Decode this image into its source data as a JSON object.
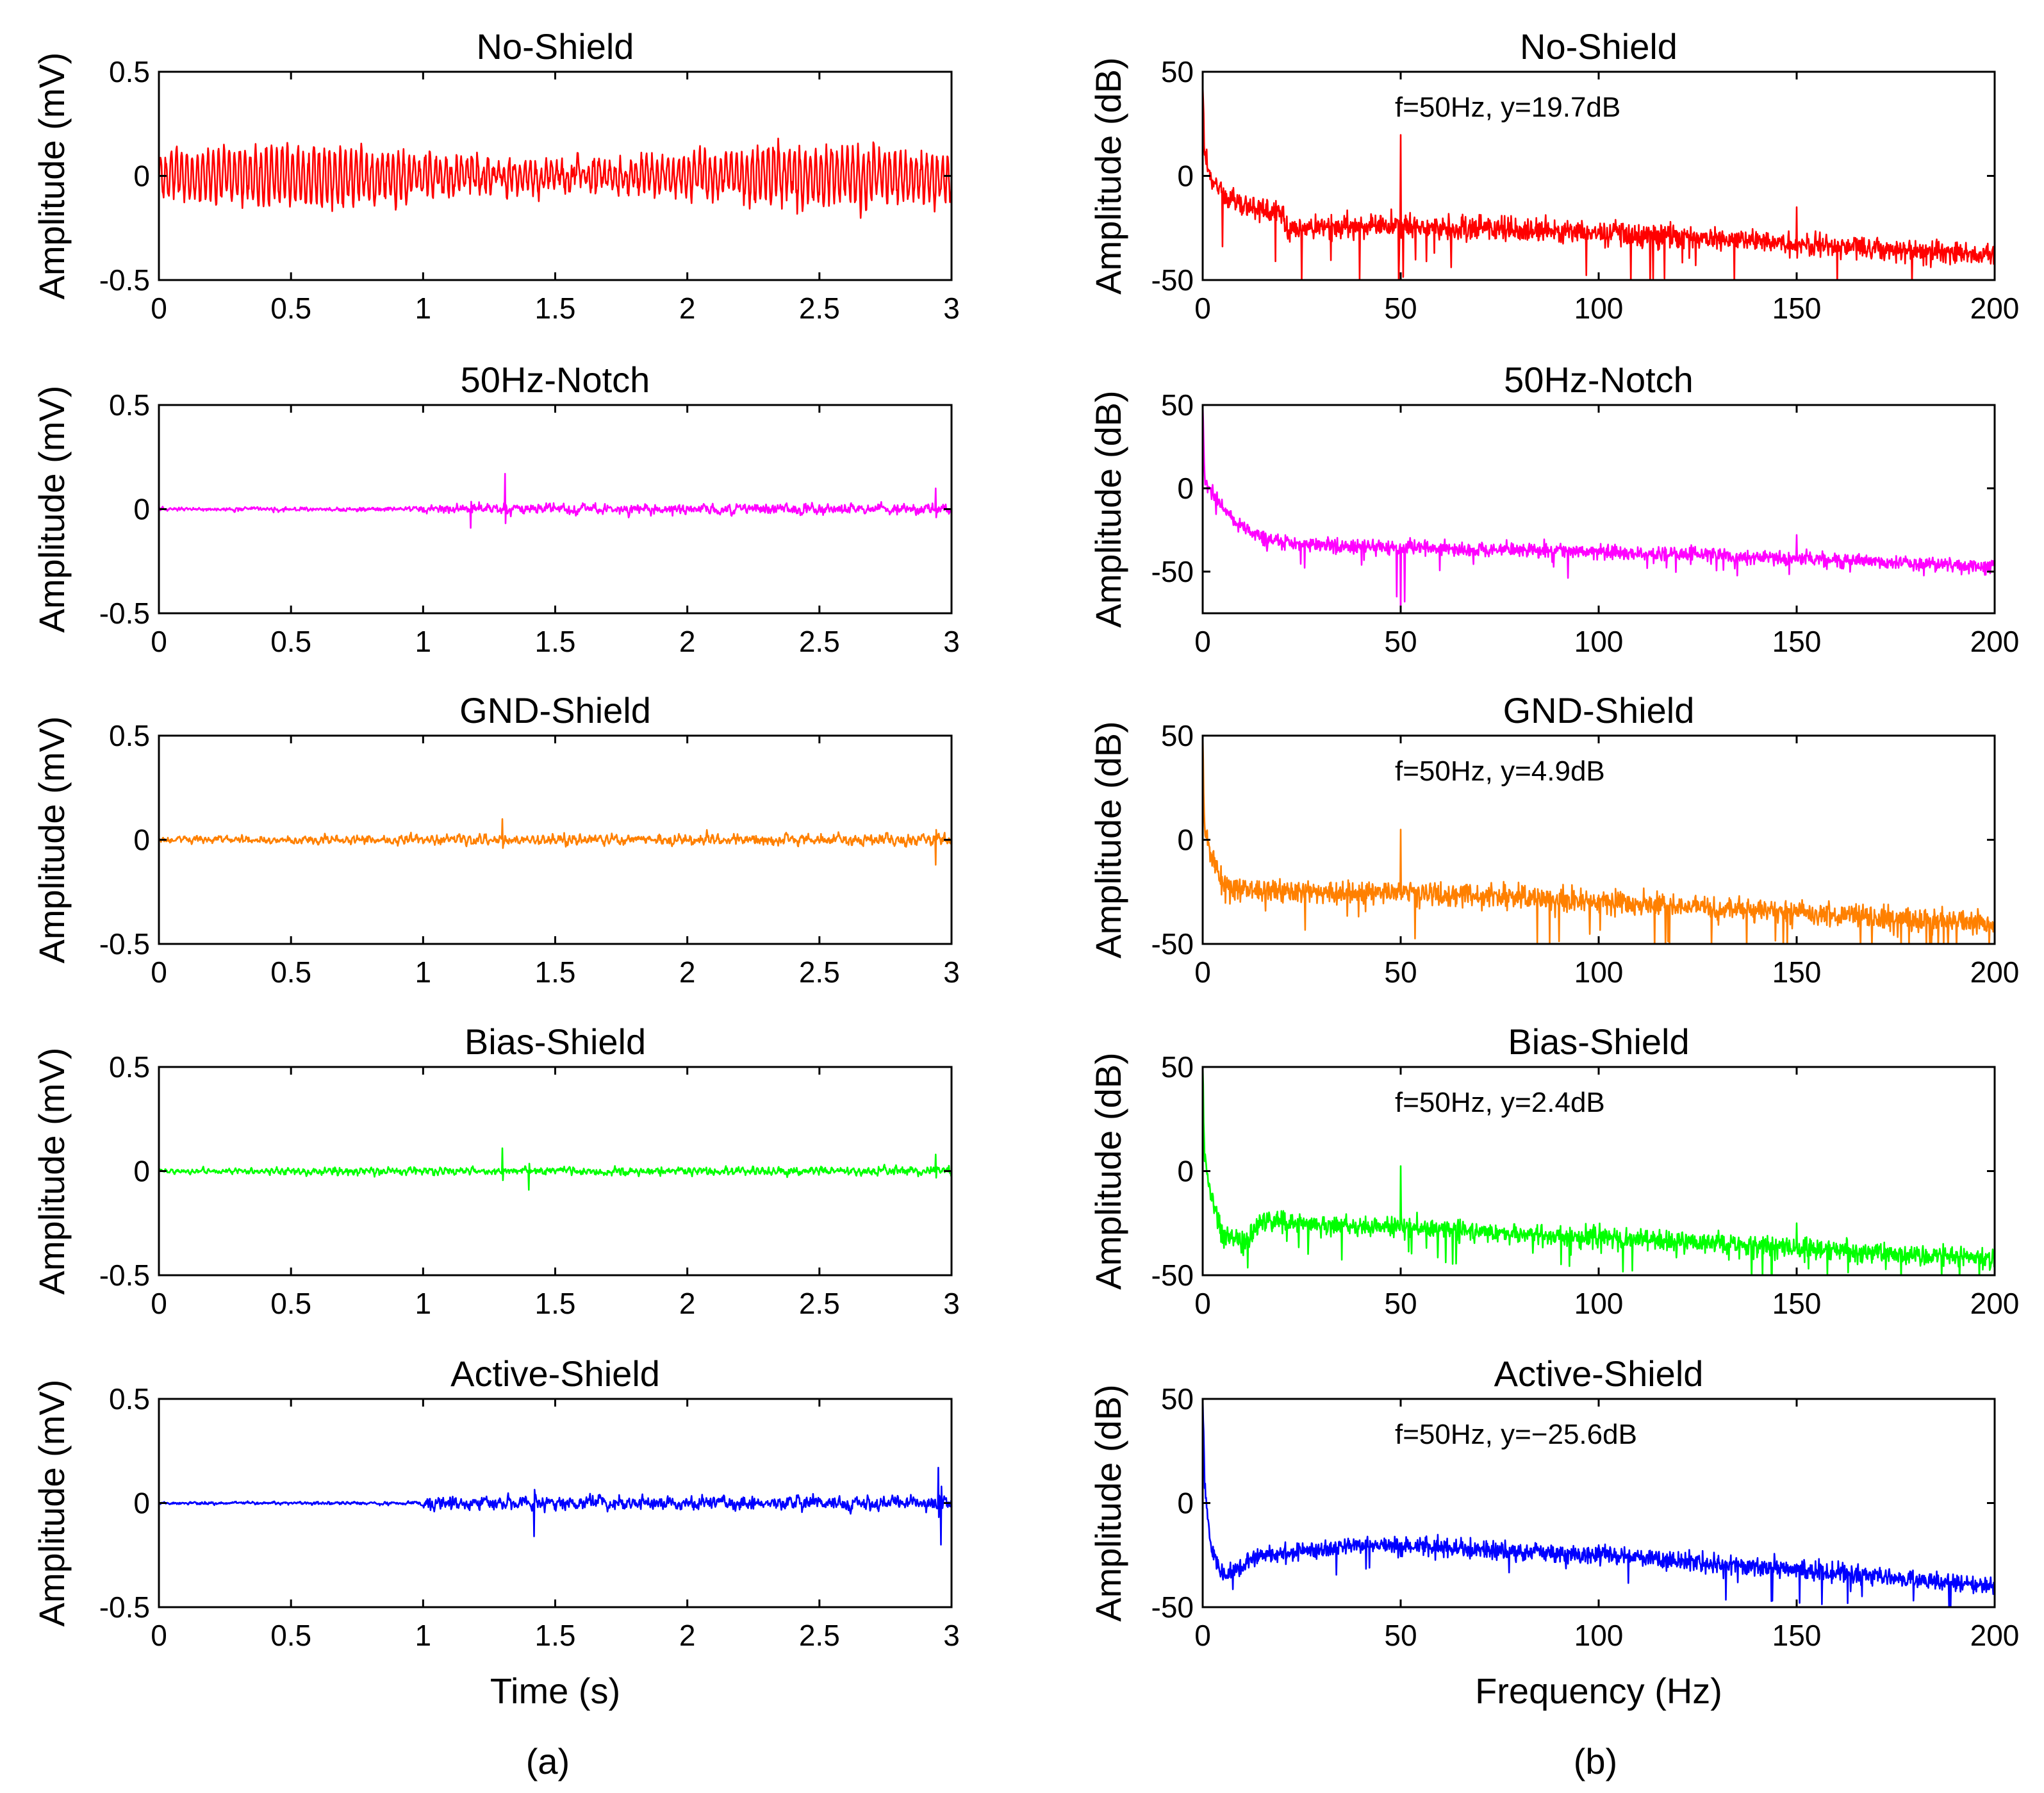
{
  "chart_data": [
    {
      "type": "line",
      "id": "a1",
      "title": "No-Shield",
      "color": "#ff0000",
      "xlabel": "",
      "ylabel": "Amplitude (mV)",
      "xlim": [
        0,
        3
      ],
      "ylim": [
        -0.5,
        0.5
      ],
      "xticks": [
        0,
        0.5,
        1,
        1.5,
        2,
        2.5,
        3
      ],
      "xtick_labels": [
        "0",
        "0.5",
        "1",
        "1.5",
        "2",
        "2.5",
        "3"
      ],
      "yticks": [
        -0.5,
        0,
        0.5
      ],
      "ytick_labels": [
        "-0.5",
        "0",
        "0.5"
      ],
      "signal": {
        "kind": "time",
        "n": 1500,
        "sine_amp": 0.13,
        "sine_freq": 50,
        "noise": [
          [
            0,
            0.05
          ],
          [
            1,
            0.07
          ],
          [
            3,
            0.07
          ]
        ],
        "spikes": []
      },
      "annotation": ""
    },
    {
      "type": "line",
      "id": "b1",
      "title": "No-Shield",
      "color": "#ff0000",
      "xlabel": "",
      "ylabel": "Amplitude (dB)",
      "xlim": [
        0,
        200
      ],
      "ylim": [
        -50,
        50
      ],
      "xticks": [
        0,
        50,
        100,
        150,
        200
      ],
      "xtick_labels": [
        "0",
        "50",
        "100",
        "150",
        "200"
      ],
      "yticks": [
        -50,
        0,
        50
      ],
      "ytick_labels": [
        "-50",
        "0",
        "50"
      ],
      "signal": {
        "kind": "spectrum",
        "n": 1600,
        "baseline": [
          [
            0,
            50
          ],
          [
            0.5,
            10
          ],
          [
            2,
            0
          ],
          [
            5,
            -10
          ],
          [
            12,
            -15
          ],
          [
            20,
            -17
          ],
          [
            21,
            -25
          ],
          [
            50,
            -24
          ],
          [
            100,
            -27
          ],
          [
            150,
            -33
          ],
          [
            200,
            -38
          ]
        ],
        "noise": 5,
        "dip_rate": 0.025,
        "dip_depth": 20,
        "peaks": [
          [
            50,
            19.7
          ],
          [
            150,
            -15
          ]
        ]
      },
      "annotation": "f=50Hz, y=19.7dB"
    },
    {
      "type": "line",
      "id": "a2",
      "title": "50Hz-Notch",
      "color": "#ff00ff",
      "xlabel": "",
      "ylabel": "Amplitude (mV)",
      "xlim": [
        0,
        3
      ],
      "ylim": [
        -0.5,
        0.5
      ],
      "xticks": [
        0,
        0.5,
        1,
        1.5,
        2,
        2.5,
        3
      ],
      "xtick_labels": [
        "0",
        "0.5",
        "1",
        "1.5",
        "2",
        "2.5",
        "3"
      ],
      "yticks": [
        -0.5,
        0,
        0.5
      ],
      "ytick_labels": [
        "-0.5",
        "0",
        "0.5"
      ],
      "signal": {
        "kind": "time",
        "n": 1500,
        "sine_amp": 0,
        "sine_freq": 50,
        "noise": [
          [
            0,
            0.012
          ],
          [
            0.9,
            0.015
          ],
          [
            1.2,
            0.038
          ],
          [
            3,
            0.035
          ]
        ],
        "spikes": [
          [
            1.31,
            0.17
          ],
          [
            1.18,
            -0.09
          ],
          [
            2.94,
            0.1
          ]
        ]
      },
      "annotation": ""
    },
    {
      "type": "line",
      "id": "b2",
      "title": "50Hz-Notch",
      "color": "#ff00ff",
      "xlabel": "",
      "ylabel": "Amplitude (dB)",
      "xlim": [
        0,
        200
      ],
      "ylim": [
        -75,
        50
      ],
      "xticks": [
        0,
        50,
        100,
        150,
        200
      ],
      "xtick_labels": [
        "0",
        "50",
        "100",
        "150",
        "200"
      ],
      "yticks": [
        -50,
        0,
        50
      ],
      "ytick_labels": [
        "-50",
        "0",
        "50"
      ],
      "signal": {
        "kind": "spectrum",
        "n": 1600,
        "baseline": [
          [
            0,
            50
          ],
          [
            0.5,
            5
          ],
          [
            3,
            -5
          ],
          [
            8,
            -20
          ],
          [
            15,
            -30
          ],
          [
            30,
            -35
          ],
          [
            100,
            -38
          ],
          [
            150,
            -42
          ],
          [
            200,
            -47
          ]
        ],
        "noise": 4,
        "dip_rate": 0.01,
        "dip_depth": 8,
        "peaks": [
          [
            50,
            -75
          ],
          [
            49,
            -65
          ],
          [
            51,
            -68
          ],
          [
            150,
            -28
          ]
        ]
      },
      "annotation": ""
    },
    {
      "type": "line",
      "id": "a3",
      "title": "GND-Shield",
      "color": "#ff8000",
      "xlabel": "",
      "ylabel": "Amplitude (mV)",
      "xlim": [
        0,
        3
      ],
      "ylim": [
        -0.5,
        0.5
      ],
      "xticks": [
        0,
        0.5,
        1,
        1.5,
        2,
        2.5,
        3
      ],
      "xtick_labels": [
        "0",
        "0.5",
        "1",
        "1.5",
        "2",
        "2.5",
        "3"
      ],
      "yticks": [
        -0.5,
        0,
        0.5
      ],
      "ytick_labels": [
        "-0.5",
        "0",
        "0.5"
      ],
      "signal": {
        "kind": "time",
        "n": 1500,
        "sine_amp": 0.012,
        "sine_freq": 50,
        "noise": [
          [
            0,
            0.022
          ],
          [
            1,
            0.03
          ],
          [
            3,
            0.035
          ]
        ],
        "spikes": [
          [
            1.3,
            0.1
          ],
          [
            2.94,
            -0.12
          ]
        ]
      },
      "annotation": ""
    },
    {
      "type": "line",
      "id": "b3",
      "title": "GND-Shield",
      "color": "#ff8000",
      "xlabel": "",
      "ylabel": "Amplitude (dB)",
      "xlim": [
        0,
        200
      ],
      "ylim": [
        -50,
        50
      ],
      "xticks": [
        0,
        50,
        100,
        150,
        200
      ],
      "xtick_labels": [
        "0",
        "50",
        "100",
        "150",
        "200"
      ],
      "yticks": [
        -50,
        0,
        50
      ],
      "ytick_labels": [
        "-50",
        "0",
        "50"
      ],
      "signal": {
        "kind": "spectrum",
        "n": 1600,
        "baseline": [
          [
            0,
            50
          ],
          [
            0.5,
            5
          ],
          [
            2,
            -5
          ],
          [
            5,
            -22
          ],
          [
            15,
            -25
          ],
          [
            50,
            -25
          ],
          [
            100,
            -30
          ],
          [
            150,
            -35
          ],
          [
            200,
            -40
          ]
        ],
        "noise": 5,
        "dip_rate": 0.02,
        "dip_depth": 15,
        "peaks": [
          [
            50,
            4.9
          ]
        ]
      },
      "annotation": "f=50Hz, y=4.9dB"
    },
    {
      "type": "line",
      "id": "a4",
      "title": "Bias-Shield",
      "color": "#00ff00",
      "xlabel": "",
      "ylabel": "Amplitude (mV)",
      "xlim": [
        0,
        3
      ],
      "ylim": [
        -0.5,
        0.5
      ],
      "xticks": [
        0,
        0.5,
        1,
        1.5,
        2,
        2.5,
        3
      ],
      "xtick_labels": [
        "0",
        "0.5",
        "1",
        "1.5",
        "2",
        "2.5",
        "3"
      ],
      "yticks": [
        -0.5,
        0,
        0.5
      ],
      "ytick_labels": [
        "-0.5",
        "0",
        "0.5"
      ],
      "signal": {
        "kind": "time",
        "n": 1500,
        "sine_amp": 0.008,
        "sine_freq": 50,
        "noise": [
          [
            0,
            0.015
          ],
          [
            1,
            0.025
          ],
          [
            3,
            0.028
          ]
        ],
        "spikes": [
          [
            1.3,
            0.11
          ],
          [
            1.4,
            -0.09
          ],
          [
            2.94,
            0.08
          ]
        ]
      },
      "annotation": ""
    },
    {
      "type": "line",
      "id": "b4",
      "title": "Bias-Shield",
      "color": "#00ff00",
      "xlabel": "",
      "ylabel": "Amplitude (dB)",
      "xlim": [
        0,
        200
      ],
      "ylim": [
        -50,
        50
      ],
      "xticks": [
        0,
        50,
        100,
        150,
        200
      ],
      "xtick_labels": [
        "0",
        "50",
        "100",
        "150",
        "200"
      ],
      "yticks": [
        -50,
        0,
        50
      ],
      "ytick_labels": [
        "-50",
        "0",
        "50"
      ],
      "signal": {
        "kind": "spectrum",
        "n": 1600,
        "baseline": [
          [
            0,
            50
          ],
          [
            0.5,
            5
          ],
          [
            2,
            -10
          ],
          [
            5,
            -30
          ],
          [
            10,
            -35
          ],
          [
            15,
            -24
          ],
          [
            50,
            -27
          ],
          [
            100,
            -32
          ],
          [
            150,
            -37
          ],
          [
            200,
            -42
          ]
        ],
        "noise": 4.5,
        "dip_rate": 0.02,
        "dip_depth": 12,
        "peaks": [
          [
            50,
            2.4
          ],
          [
            150,
            -25
          ]
        ]
      },
      "annotation": "f=50Hz, y=2.4dB"
    },
    {
      "type": "line",
      "id": "a5",
      "title": "Active-Shield",
      "color": "#0000ff",
      "xlabel": "Time (s)",
      "ylabel": "Amplitude (mV)",
      "xlim": [
        0,
        3
      ],
      "ylim": [
        -0.5,
        0.5
      ],
      "xticks": [
        0,
        0.5,
        1,
        1.5,
        2,
        2.5,
        3
      ],
      "xtick_labels": [
        "0",
        "0.5",
        "1",
        "1.5",
        "2",
        "2.5",
        "3"
      ],
      "yticks": [
        -0.5,
        0,
        0.5
      ],
      "ytick_labels": [
        "-0.5",
        "0",
        "0.5"
      ],
      "signal": {
        "kind": "time",
        "n": 1500,
        "sine_amp": 0,
        "sine_freq": 50,
        "noise": [
          [
            0,
            0.01
          ],
          [
            0.98,
            0.012
          ],
          [
            1.02,
            0.05
          ],
          [
            3,
            0.048
          ]
        ],
        "spikes": [
          [
            2.95,
            0.17
          ],
          [
            2.96,
            -0.2
          ],
          [
            1.42,
            -0.16
          ]
        ]
      },
      "annotation": ""
    },
    {
      "type": "line",
      "id": "b5",
      "title": "Active-Shield",
      "color": "#0000ff",
      "xlabel": "Frequency (Hz)",
      "ylabel": "Amplitude (dB)",
      "xlim": [
        0,
        200
      ],
      "ylim": [
        -50,
        50
      ],
      "xticks": [
        0,
        50,
        100,
        150,
        200
      ],
      "xtick_labels": [
        "0",
        "50",
        "100",
        "150",
        "200"
      ],
      "yticks": [
        -50,
        0,
        50
      ],
      "ytick_labels": [
        "-50",
        "0",
        "50"
      ],
      "signal": {
        "kind": "spectrum",
        "n": 1600,
        "baseline": [
          [
            0,
            50
          ],
          [
            0.5,
            10
          ],
          [
            2,
            -20
          ],
          [
            5,
            -35
          ],
          [
            15,
            -25
          ],
          [
            40,
            -20
          ],
          [
            70,
            -22
          ],
          [
            100,
            -25
          ],
          [
            150,
            -32
          ],
          [
            200,
            -40
          ]
        ],
        "noise": 4,
        "dip_rate": 0.015,
        "dip_depth": 12,
        "peaks": [
          [
            50,
            -25.6
          ]
        ]
      },
      "annotation": "f=50Hz, y=−25.6dB"
    }
  ],
  "captions": {
    "left": "(a)",
    "right": "(b)"
  }
}
